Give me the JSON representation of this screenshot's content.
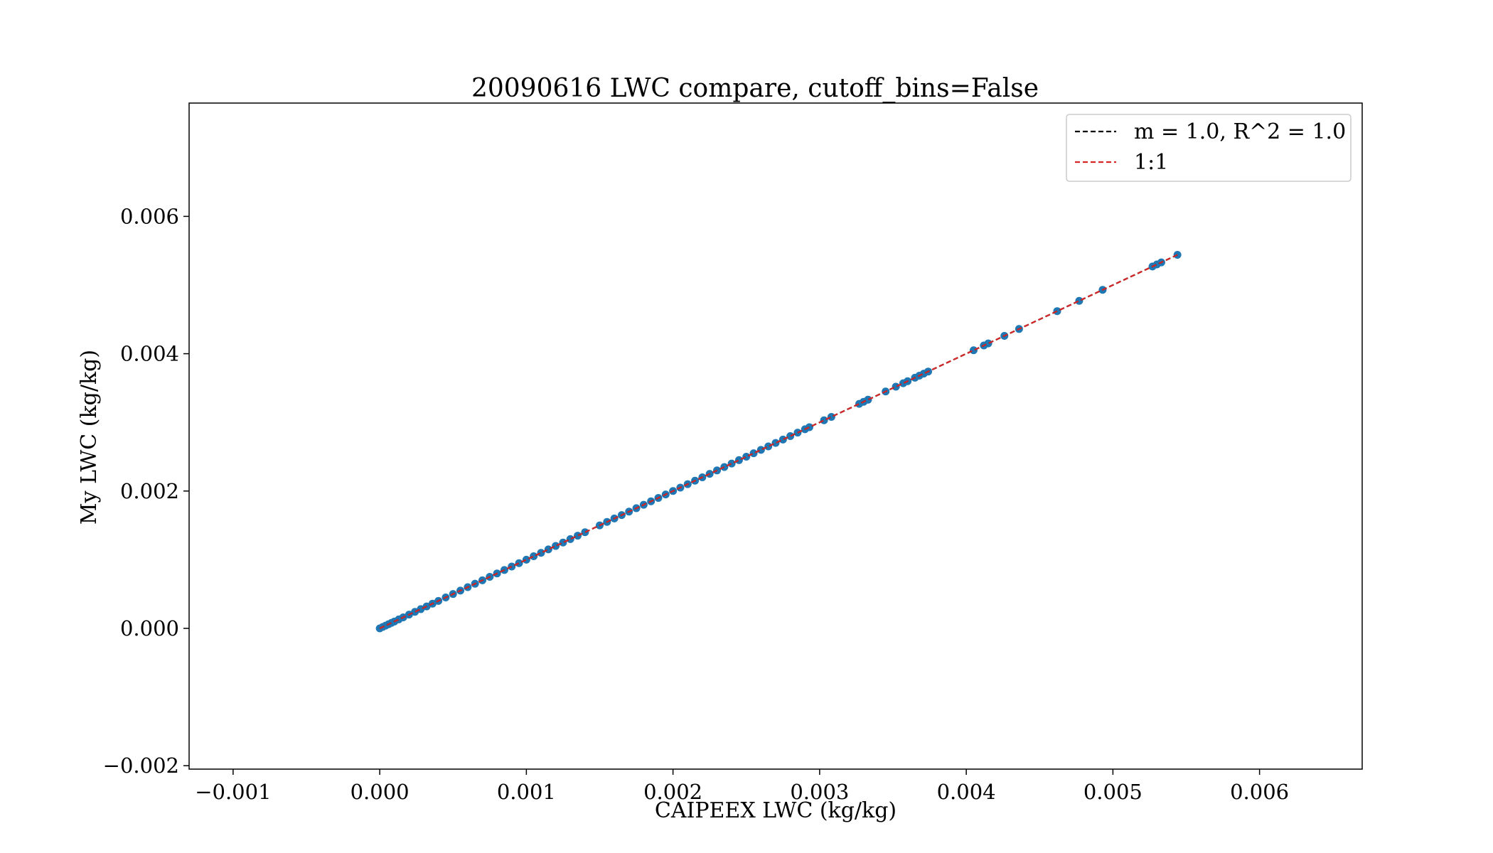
{
  "chart_data": {
    "type": "scatter",
    "title": "20090616 LWC compare, cutoff_bins=False",
    "xlabel": "CAIPEEX LWC (kg/kg)",
    "ylabel": "My LWC (kg/kg)",
    "xlim": [
      -0.0013,
      0.0067
    ],
    "ylim": [
      -0.00205,
      0.00765
    ],
    "xticks": [
      -0.001,
      0.0,
      0.001,
      0.002,
      0.003,
      0.004,
      0.005,
      0.006
    ],
    "xtick_labels": [
      "−0.001",
      "0.000",
      "0.001",
      "0.002",
      "0.003",
      "0.004",
      "0.005",
      "0.006"
    ],
    "yticks": [
      -0.002,
      0.0,
      0.002,
      0.004,
      0.006
    ],
    "ytick_labels": [
      "−0.002",
      "0.000",
      "0.002",
      "0.004",
      "0.006"
    ],
    "grid": false,
    "legend_position": "top-right",
    "scatter_color": "#1f77b4",
    "series": [
      {
        "kind": "scatter",
        "color": "#1f77b4",
        "x": [
          0.0,
          2e-05,
          4e-05,
          6e-05,
          8e-05,
          0.0001,
          0.00013,
          0.00016,
          0.0002,
          0.00024,
          0.00028,
          0.00032,
          0.00036,
          0.0004,
          0.00045,
          0.0005,
          0.00055,
          0.0006,
          0.00065,
          0.0007,
          0.00075,
          0.0008,
          0.00085,
          0.0009,
          0.00095,
          0.001,
          0.00105,
          0.0011,
          0.00115,
          0.0012,
          0.00125,
          0.0013,
          0.00135,
          0.0014,
          0.0015,
          0.00155,
          0.0016,
          0.00165,
          0.0017,
          0.00175,
          0.0018,
          0.00185,
          0.0019,
          0.00195,
          0.002,
          0.00205,
          0.0021,
          0.00215,
          0.0022,
          0.00225,
          0.0023,
          0.00235,
          0.0024,
          0.00245,
          0.0025,
          0.00255,
          0.0026,
          0.00265,
          0.0027,
          0.00275,
          0.0028,
          0.00285,
          0.0029,
          0.00293,
          0.00303,
          0.00308,
          0.00327,
          0.0033,
          0.00333,
          0.00345,
          0.00352,
          0.00357,
          0.0036,
          0.00365,
          0.00368,
          0.00371,
          0.00374,
          0.00405,
          0.00412,
          0.00415,
          0.00426,
          0.00436,
          0.00462,
          0.00477,
          0.00493,
          0.00527,
          0.0053,
          0.00533,
          0.00544
        ],
        "y": [
          0.0,
          2e-05,
          4e-05,
          6e-05,
          8e-05,
          0.0001,
          0.00013,
          0.00016,
          0.0002,
          0.00024,
          0.00028,
          0.00032,
          0.00036,
          0.0004,
          0.00045,
          0.0005,
          0.00055,
          0.0006,
          0.00065,
          0.0007,
          0.00075,
          0.0008,
          0.00085,
          0.0009,
          0.00095,
          0.001,
          0.00105,
          0.0011,
          0.00115,
          0.0012,
          0.00125,
          0.0013,
          0.00135,
          0.0014,
          0.0015,
          0.00155,
          0.0016,
          0.00165,
          0.0017,
          0.00175,
          0.0018,
          0.00185,
          0.0019,
          0.00195,
          0.002,
          0.00205,
          0.0021,
          0.00215,
          0.0022,
          0.00225,
          0.0023,
          0.00235,
          0.0024,
          0.00245,
          0.0025,
          0.00255,
          0.0026,
          0.00265,
          0.0027,
          0.00275,
          0.0028,
          0.00285,
          0.0029,
          0.00293,
          0.00303,
          0.00308,
          0.00327,
          0.0033,
          0.00333,
          0.00345,
          0.00352,
          0.00357,
          0.0036,
          0.00365,
          0.00368,
          0.00371,
          0.00374,
          0.00405,
          0.00412,
          0.00415,
          0.00426,
          0.00436,
          0.00462,
          0.00477,
          0.00493,
          0.00527,
          0.0053,
          0.00533,
          0.00544
        ]
      },
      {
        "kind": "line",
        "name": "m = 1.0, R^2 = 1.0",
        "color": "#000000",
        "dashed": true,
        "x": [
          0.0,
          0.00544
        ],
        "y": [
          0.0,
          0.00544
        ]
      },
      {
        "kind": "line",
        "name": "1:1",
        "color": "#d62728",
        "dashed": true,
        "x": [
          0.0,
          0.00544
        ],
        "y": [
          0.0,
          0.00544
        ]
      }
    ],
    "legend": [
      {
        "label": "m = 1.0, R^2 = 1.0",
        "color": "#000000"
      },
      {
        "label": "1:1",
        "color": "#d62728"
      }
    ]
  }
}
